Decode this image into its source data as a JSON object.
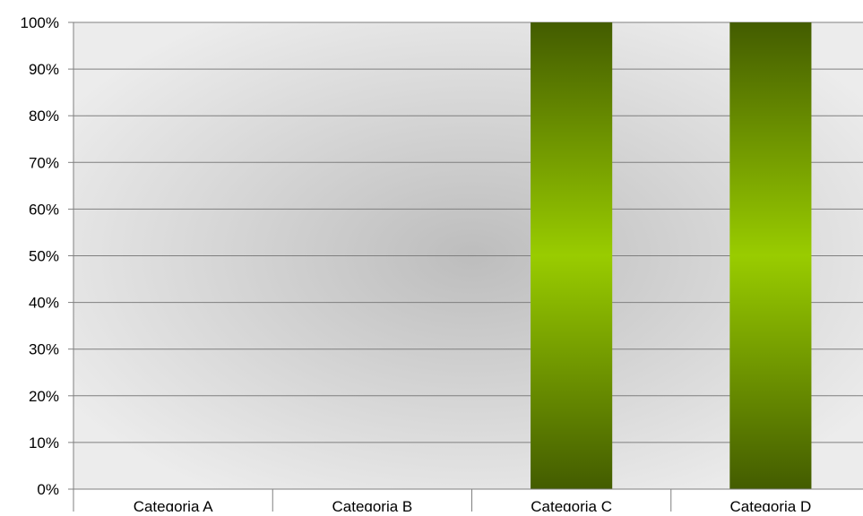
{
  "chart_data": {
    "type": "bar",
    "categories": [
      "Categoria A",
      "Categoria B",
      "Categoria C",
      "Categoria D"
    ],
    "values": [
      0,
      0,
      100,
      100
    ],
    "title": "",
    "xlabel": "",
    "ylabel": "",
    "ylim": [
      0,
      100
    ],
    "y_ticks": [
      "0%",
      "10%",
      "20%",
      "30%",
      "40%",
      "50%",
      "60%",
      "70%",
      "80%",
      "90%",
      "100%"
    ],
    "grid": true,
    "legend": "none",
    "colors": {
      "bar_edge": "#435c00",
      "bar_center": "#99cc00",
      "plot_bg_outer": "#ececec",
      "plot_bg_inner": "#bdbdbd",
      "gridline": "#7f7f7f"
    }
  }
}
